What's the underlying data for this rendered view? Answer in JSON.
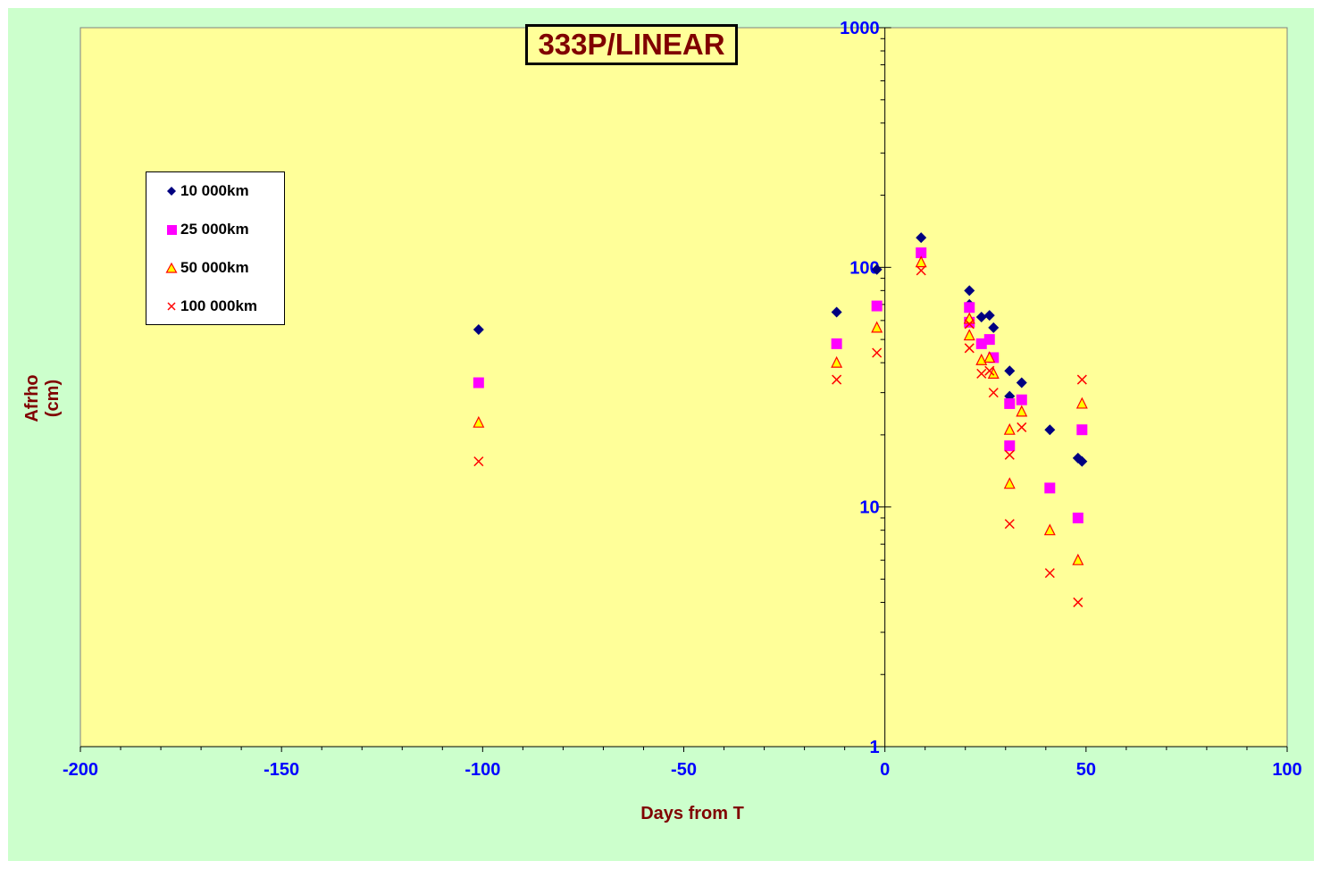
{
  "chart_data": {
    "type": "scatter",
    "title": "333P/LINEAR",
    "xlabel": "Days from T",
    "ylabel": "Afrho (cm)",
    "xlim": [
      -200,
      100
    ],
    "ylim": [
      1,
      1000
    ],
    "yscale": "log",
    "x_ticks": [
      "-200",
      "-150",
      "-100",
      "-50",
      "0",
      "50",
      "100"
    ],
    "y_ticks": [
      "1",
      "10",
      "100",
      "1000"
    ],
    "grid": false,
    "legend_position": "left",
    "colors": {
      "plot_background": "#ffff99",
      "chart_background": "#ccffcc",
      "axis_labels": "#800000",
      "tick_labels": "#0000ff"
    },
    "series": [
      {
        "name": "10 000km",
        "marker": "diamond",
        "color": "#000080",
        "points": [
          [
            -101,
            55
          ],
          [
            -12,
            65
          ],
          [
            -2,
            98
          ],
          [
            9,
            133
          ],
          [
            21,
            80
          ],
          [
            21,
            70
          ],
          [
            24,
            62
          ],
          [
            26,
            63
          ],
          [
            27,
            56
          ],
          [
            31,
            37
          ],
          [
            31,
            29
          ],
          [
            34,
            33
          ],
          [
            41,
            21
          ],
          [
            48,
            16
          ],
          [
            49,
            15.5
          ]
        ]
      },
      {
        "name": "25 000km",
        "marker": "square",
        "color": "#ff00ff",
        "points": [
          [
            -101,
            33
          ],
          [
            -12,
            48
          ],
          [
            -2,
            69
          ],
          [
            9,
            115
          ],
          [
            21,
            68
          ],
          [
            21,
            59
          ],
          [
            24,
            48
          ],
          [
            26,
            50
          ],
          [
            27,
            42
          ],
          [
            31,
            27
          ],
          [
            31,
            18
          ],
          [
            34,
            28
          ],
          [
            41,
            12
          ],
          [
            48,
            9
          ],
          [
            49,
            21
          ]
        ]
      },
      {
        "name": "50 000km",
        "marker": "triangle",
        "color": "#ffff00",
        "points": [
          [
            -101,
            22.5
          ],
          [
            -12,
            40
          ],
          [
            -2,
            56
          ],
          [
            9,
            105
          ],
          [
            21,
            61
          ],
          [
            21,
            52
          ],
          [
            24,
            41
          ],
          [
            26,
            42
          ],
          [
            27,
            36
          ],
          [
            31,
            21
          ],
          [
            31,
            12.5
          ],
          [
            34,
            25
          ],
          [
            41,
            8
          ],
          [
            48,
            6
          ],
          [
            49,
            27
          ]
        ]
      },
      {
        "name": "100 000km",
        "marker": "x",
        "color": "#ff0000",
        "points": [
          [
            -101,
            15.5
          ],
          [
            -12,
            34
          ],
          [
            -2,
            44
          ],
          [
            9,
            97
          ],
          [
            21,
            58
          ],
          [
            21,
            46
          ],
          [
            24,
            36
          ],
          [
            26,
            37
          ],
          [
            27,
            30
          ],
          [
            31,
            16.5
          ],
          [
            31,
            8.5
          ],
          [
            34,
            21.5
          ],
          [
            41,
            5.3
          ],
          [
            48,
            4
          ],
          [
            49,
            34
          ]
        ]
      }
    ]
  }
}
